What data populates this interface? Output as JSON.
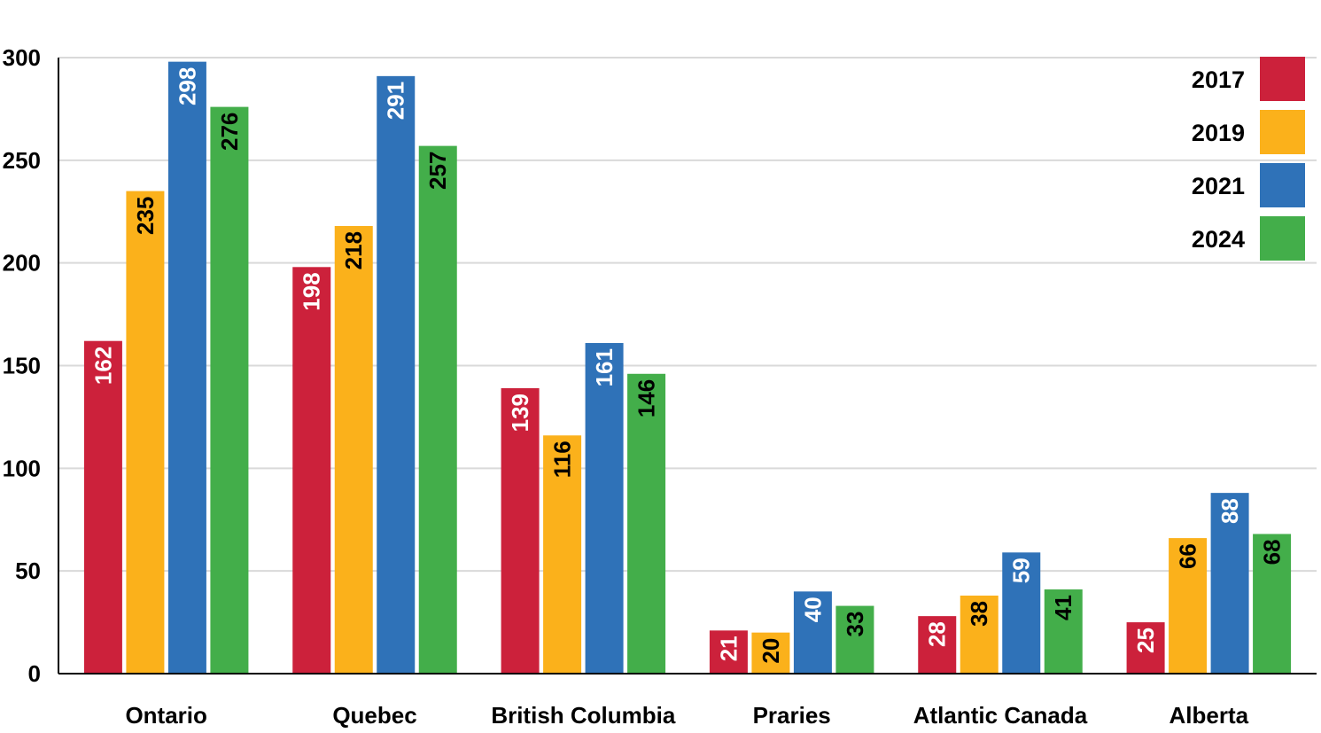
{
  "chart_data": {
    "type": "bar",
    "title": "",
    "xlabel": "",
    "ylabel": "",
    "categories": [
      "Ontario",
      "Quebec",
      "British Columbia",
      "Praries",
      "Atlantic Canada",
      "Alberta"
    ],
    "series": [
      {
        "name": "2017",
        "color": "#cc213b",
        "label_color": "#ffffff",
        "values": [
          162,
          198,
          139,
          21,
          28,
          25
        ]
      },
      {
        "name": "2019",
        "color": "#fbb11b",
        "label_color": "#000000",
        "values": [
          235,
          218,
          116,
          20,
          38,
          66
        ]
      },
      {
        "name": "2021",
        "color": "#2f72b8",
        "label_color": "#ffffff",
        "values": [
          298,
          291,
          161,
          40,
          59,
          88
        ]
      },
      {
        "name": "2024",
        "color": "#43ae4a",
        "label_color": "#000000",
        "values": [
          276,
          257,
          146,
          33,
          41,
          68
        ]
      }
    ],
    "ylim": [
      0,
      300
    ],
    "yticks": [
      0,
      50,
      100,
      150,
      200,
      250,
      300
    ],
    "grid": true,
    "legend_position": "top-right",
    "data_labels": "rotated inside bar top"
  }
}
